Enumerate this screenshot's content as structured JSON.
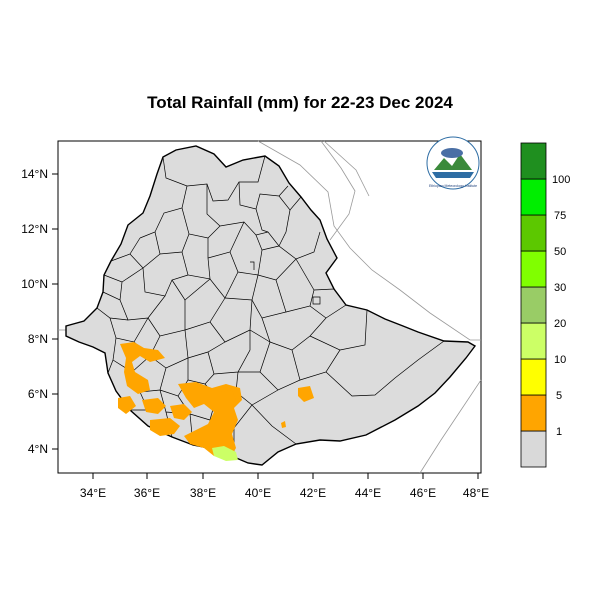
{
  "title": "Total Rainfall (mm) for 22-23 Dec 2024",
  "map": {
    "lon_range": [
      33,
      48
    ],
    "lat_range": [
      3.2,
      15
    ],
    "x_ticks": [
      "34°E",
      "36°E",
      "38°E",
      "40°E",
      "42°E",
      "44°E",
      "46°E",
      "48°E"
    ],
    "y_ticks": [
      "4°N",
      "6°N",
      "8°N",
      "10°N",
      "12°N",
      "14°N"
    ],
    "country_fill": "#dcdcdc",
    "border_color": "#000000"
  },
  "colorbar": {
    "levels": [
      "1",
      "5",
      "10",
      "20",
      "30",
      "50",
      "75",
      "100"
    ],
    "colors": [
      "#d9d9d9",
      "#ffa500",
      "#ffff00",
      "#ccff66",
      "#99cc66",
      "#80ff00",
      "#5cc800",
      "#00ee00",
      "#1f8f1f"
    ]
  },
  "logo": {
    "icon": "meteorology-institute-logo",
    "caption": "Ethiopian Meteorology Institute"
  }
}
